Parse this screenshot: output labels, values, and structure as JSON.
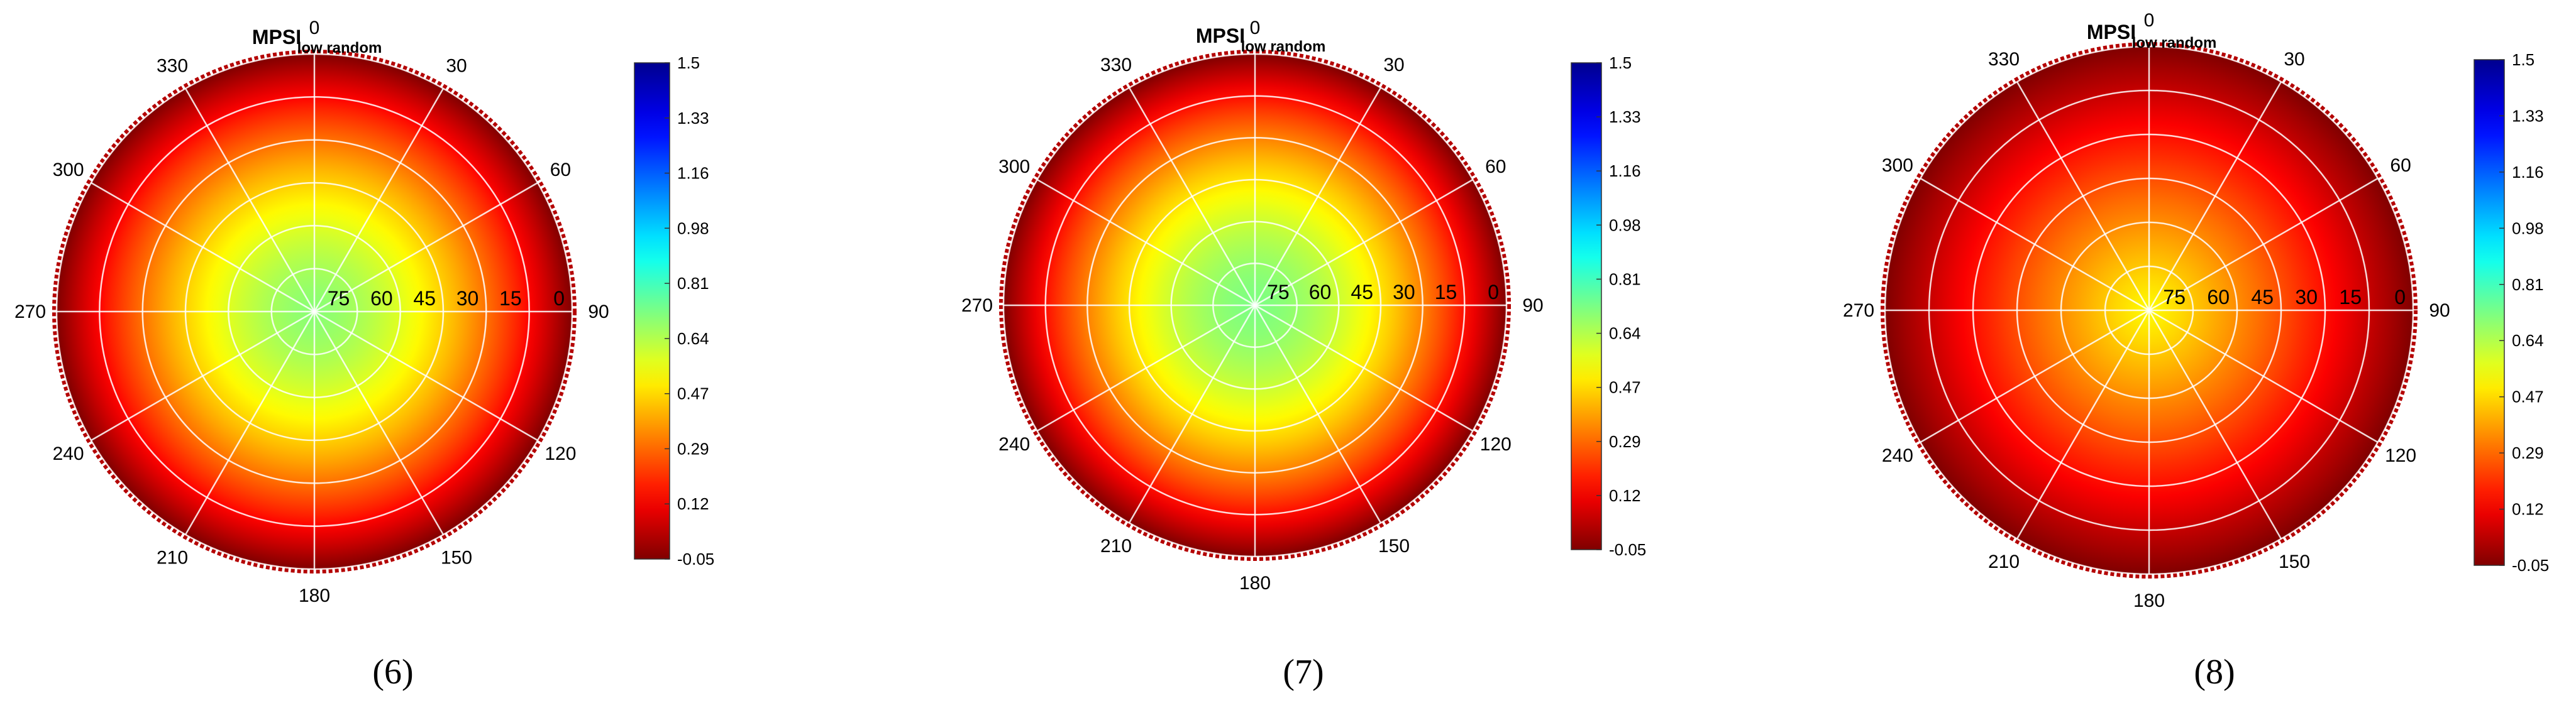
{
  "chart_data": [
    {
      "type": "heatmap",
      "subtype": "polar",
      "title_main": "MPSI",
      "title_sub": "low random",
      "caption": "(6)",
      "angular_ticks": [
        "0",
        "30",
        "60",
        "90",
        "120",
        "150",
        "180",
        "210",
        "240",
        "270",
        "300",
        "330"
      ],
      "radial_ticks": [
        "75",
        "60",
        "45",
        "30",
        "15",
        "0"
      ],
      "colorbar_ticks": [
        "1.5",
        "1.33",
        "1.16",
        "0.98",
        "0.81",
        "0.64",
        "0.47",
        "0.29",
        "0.12",
        "-0.05"
      ],
      "clim": [
        -0.05,
        1.5
      ],
      "value_center": 0.7,
      "value_edge": -0.05,
      "profile_power": 1.6
    },
    {
      "type": "heatmap",
      "subtype": "polar",
      "title_main": "MPSI",
      "title_sub": "low random",
      "caption": "(7)",
      "angular_ticks": [
        "0",
        "30",
        "60",
        "90",
        "120",
        "150",
        "180",
        "210",
        "240",
        "270",
        "300",
        "330"
      ],
      "radial_ticks": [
        "75",
        "60",
        "45",
        "30",
        "15",
        "0"
      ],
      "colorbar_ticks": [
        "1.5",
        "1.33",
        "1.16",
        "0.98",
        "0.81",
        "0.64",
        "0.47",
        "0.29",
        "0.12",
        "-0.05"
      ],
      "clim": [
        -0.05,
        1.5
      ],
      "value_center": 0.72,
      "value_edge": -0.05,
      "profile_power": 1.7
    },
    {
      "type": "heatmap",
      "subtype": "polar",
      "title_main": "MPSI",
      "title_sub": "low random",
      "caption": "(8)",
      "angular_ticks": [
        "0",
        "30",
        "60",
        "90",
        "120",
        "150",
        "180",
        "210",
        "240",
        "270",
        "300",
        "330"
      ],
      "radial_ticks": [
        "75",
        "60",
        "45",
        "30",
        "15",
        "0"
      ],
      "colorbar_ticks": [
        "1.5",
        "1.33",
        "1.16",
        "0.98",
        "0.81",
        "0.64",
        "0.47",
        "0.29",
        "0.12",
        "-0.05"
      ],
      "clim": [
        -0.05,
        1.5
      ],
      "value_center": 0.52,
      "value_edge": -0.05,
      "profile_power": 1.1
    }
  ]
}
